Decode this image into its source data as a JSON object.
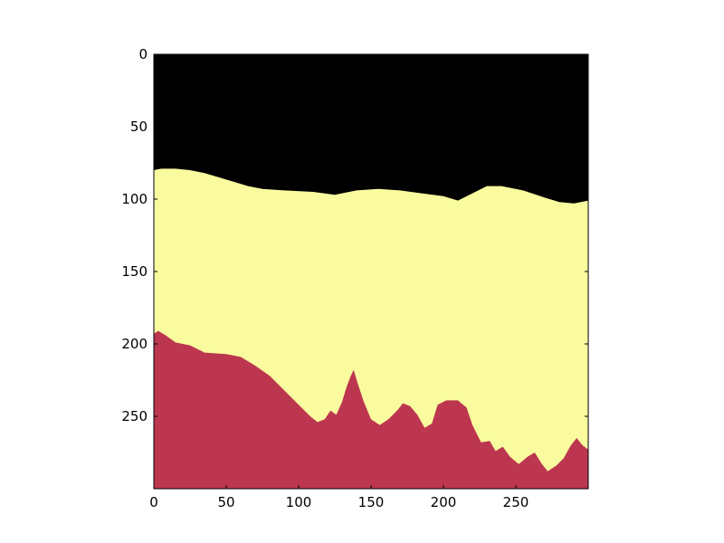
{
  "chart_data": {
    "type": "heatmap",
    "title": "",
    "xlabel": "",
    "ylabel": "",
    "xlim": [
      0,
      300
    ],
    "ylim": [
      300,
      0
    ],
    "x_ticks": [
      {
        "value": 0,
        "label": "0"
      },
      {
        "value": 50,
        "label": "50"
      },
      {
        "value": 100,
        "label": "100"
      },
      {
        "value": 150,
        "label": "150"
      },
      {
        "value": 200,
        "label": "200"
      },
      {
        "value": 250,
        "label": "250"
      }
    ],
    "y_ticks": [
      {
        "value": 0,
        "label": "0"
      },
      {
        "value": 50,
        "label": "50"
      },
      {
        "value": 100,
        "label": "100"
      },
      {
        "value": 150,
        "label": "150"
      },
      {
        "value": 200,
        "label": "200"
      },
      {
        "value": 250,
        "label": "250"
      }
    ],
    "classes": [
      {
        "name": "sky",
        "color": "#000000"
      },
      {
        "name": "mountain",
        "color": "#f9fb9e"
      },
      {
        "name": "trees",
        "color": "#bc3650"
      }
    ],
    "regions": {
      "mountain_top_boundary": [
        [
          0,
          80
        ],
        [
          5,
          79
        ],
        [
          15,
          79
        ],
        [
          25,
          80
        ],
        [
          35,
          82
        ],
        [
          45,
          85
        ],
        [
          55,
          88
        ],
        [
          65,
          91
        ],
        [
          75,
          93
        ],
        [
          90,
          94
        ],
        [
          110,
          95
        ],
        [
          125,
          97
        ],
        [
          140,
          94
        ],
        [
          155,
          93
        ],
        [
          170,
          94
        ],
        [
          185,
          96
        ],
        [
          200,
          98
        ],
        [
          210,
          101
        ],
        [
          220,
          96
        ],
        [
          230,
          91
        ],
        [
          240,
          91
        ],
        [
          255,
          94
        ],
        [
          270,
          99
        ],
        [
          280,
          102
        ],
        [
          290,
          103
        ],
        [
          300,
          101
        ]
      ],
      "tree_top_boundary": [
        [
          0,
          193
        ],
        [
          3,
          191
        ],
        [
          8,
          194
        ],
        [
          15,
          199
        ],
        [
          25,
          201
        ],
        [
          35,
          206
        ],
        [
          50,
          207
        ],
        [
          60,
          209
        ],
        [
          70,
          215
        ],
        [
          80,
          222
        ],
        [
          90,
          232
        ],
        [
          100,
          242
        ],
        [
          108,
          250
        ],
        [
          113,
          254
        ],
        [
          118,
          252
        ],
        [
          122,
          246
        ],
        [
          126,
          249
        ],
        [
          130,
          240
        ],
        [
          133,
          230
        ],
        [
          136,
          222
        ],
        [
          138,
          218
        ],
        [
          141,
          228
        ],
        [
          145,
          240
        ],
        [
          150,
          252
        ],
        [
          156,
          256
        ],
        [
          162,
          252
        ],
        [
          168,
          246
        ],
        [
          172,
          241
        ],
        [
          177,
          243
        ],
        [
          182,
          249
        ],
        [
          187,
          258
        ],
        [
          192,
          255
        ],
        [
          196,
          242
        ],
        [
          202,
          239
        ],
        [
          210,
          239
        ],
        [
          216,
          244
        ],
        [
          220,
          256
        ],
        [
          226,
          268
        ],
        [
          232,
          267
        ],
        [
          236,
          274
        ],
        [
          241,
          271
        ],
        [
          246,
          278
        ],
        [
          252,
          283
        ],
        [
          258,
          278
        ],
        [
          263,
          275
        ],
        [
          268,
          283
        ],
        [
          272,
          288
        ],
        [
          278,
          284
        ],
        [
          283,
          279
        ],
        [
          288,
          270
        ],
        [
          292,
          265
        ],
        [
          296,
          270
        ],
        [
          300,
          273
        ]
      ]
    }
  }
}
